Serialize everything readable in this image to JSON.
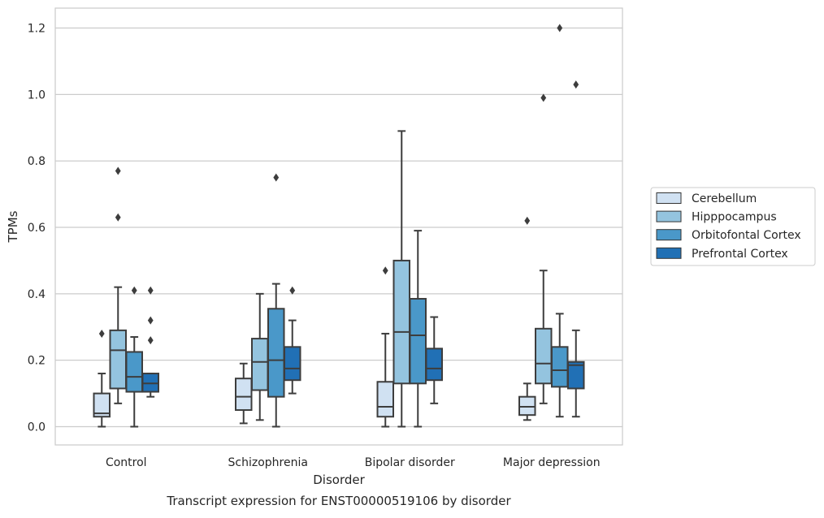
{
  "chart_data": {
    "type": "box",
    "title": "",
    "caption": "Transcript expression for ENST00000519106 by disorder",
    "xlabel": "Disorder",
    "ylabel": "TPMs",
    "ylim": [
      -0.055,
      1.26
    ],
    "yticks": [
      0.0,
      0.2,
      0.4,
      0.6,
      0.8,
      1.0,
      1.2
    ],
    "ytick_labels": [
      "0.0",
      "0.2",
      "0.4",
      "0.6",
      "0.8",
      "1.0",
      "1.2"
    ],
    "grid": "horizontal",
    "legend_position": "right",
    "categories": [
      "Control",
      "Schizophrenia",
      "Bipolar disorder",
      "Major depression"
    ],
    "series": [
      {
        "name": "Cerebellum",
        "color": "#d0e1f2",
        "boxes": [
          {
            "whisker_low": 0.0,
            "q1": 0.03,
            "median": 0.04,
            "q3": 0.1,
            "whisker_high": 0.16,
            "outliers": [
              0.28
            ]
          },
          {
            "whisker_low": 0.01,
            "q1": 0.05,
            "median": 0.09,
            "q3": 0.145,
            "whisker_high": 0.19,
            "outliers": []
          },
          {
            "whisker_low": 0.0,
            "q1": 0.03,
            "median": 0.06,
            "q3": 0.135,
            "whisker_high": 0.28,
            "outliers": [
              0.47
            ]
          },
          {
            "whisker_low": 0.02,
            "q1": 0.035,
            "median": 0.06,
            "q3": 0.09,
            "whisker_high": 0.13,
            "outliers": [
              0.62
            ]
          }
        ]
      },
      {
        "name": "Hipppocampus",
        "color": "#94c4df",
        "boxes": [
          {
            "whisker_low": 0.07,
            "q1": 0.115,
            "median": 0.23,
            "q3": 0.29,
            "whisker_high": 0.42,
            "outliers": [
              0.63,
              0.77
            ]
          },
          {
            "whisker_low": 0.02,
            "q1": 0.11,
            "median": 0.195,
            "q3": 0.265,
            "whisker_high": 0.4,
            "outliers": []
          },
          {
            "whisker_low": 0.0,
            "q1": 0.13,
            "median": 0.285,
            "q3": 0.5,
            "whisker_high": 0.89,
            "outliers": []
          },
          {
            "whisker_low": 0.07,
            "q1": 0.13,
            "median": 0.19,
            "q3": 0.295,
            "whisker_high": 0.47,
            "outliers": [
              0.99
            ]
          }
        ]
      },
      {
        "name": "Orbitofontal Cortex",
        "color": "#4a98c9",
        "boxes": [
          {
            "whisker_low": 0.0,
            "q1": 0.105,
            "median": 0.15,
            "q3": 0.225,
            "whisker_high": 0.27,
            "outliers": [
              0.41
            ]
          },
          {
            "whisker_low": 0.0,
            "q1": 0.09,
            "median": 0.2,
            "q3": 0.355,
            "whisker_high": 0.43,
            "outliers": [
              0.75
            ]
          },
          {
            "whisker_low": 0.0,
            "q1": 0.13,
            "median": 0.275,
            "q3": 0.385,
            "whisker_high": 0.59,
            "outliers": []
          },
          {
            "whisker_low": 0.03,
            "q1": 0.12,
            "median": 0.17,
            "q3": 0.24,
            "whisker_high": 0.34,
            "outliers": [
              1.2
            ]
          }
        ]
      },
      {
        "name": "Prefrontal Cortex",
        "color": "#2170b5",
        "boxes": [
          {
            "whisker_low": 0.09,
            "q1": 0.105,
            "median": 0.13,
            "q3": 0.16,
            "whisker_high": 0.16,
            "outliers": [
              0.26,
              0.32,
              0.41
            ]
          },
          {
            "whisker_low": 0.1,
            "q1": 0.14,
            "median": 0.175,
            "q3": 0.24,
            "whisker_high": 0.32,
            "outliers": [
              0.41
            ]
          },
          {
            "whisker_low": 0.07,
            "q1": 0.14,
            "median": 0.175,
            "q3": 0.235,
            "whisker_high": 0.33,
            "outliers": []
          },
          {
            "whisker_low": 0.03,
            "q1": 0.115,
            "median": 0.185,
            "q3": 0.195,
            "whisker_high": 0.29,
            "outliers": [
              1.03
            ]
          }
        ]
      }
    ]
  }
}
